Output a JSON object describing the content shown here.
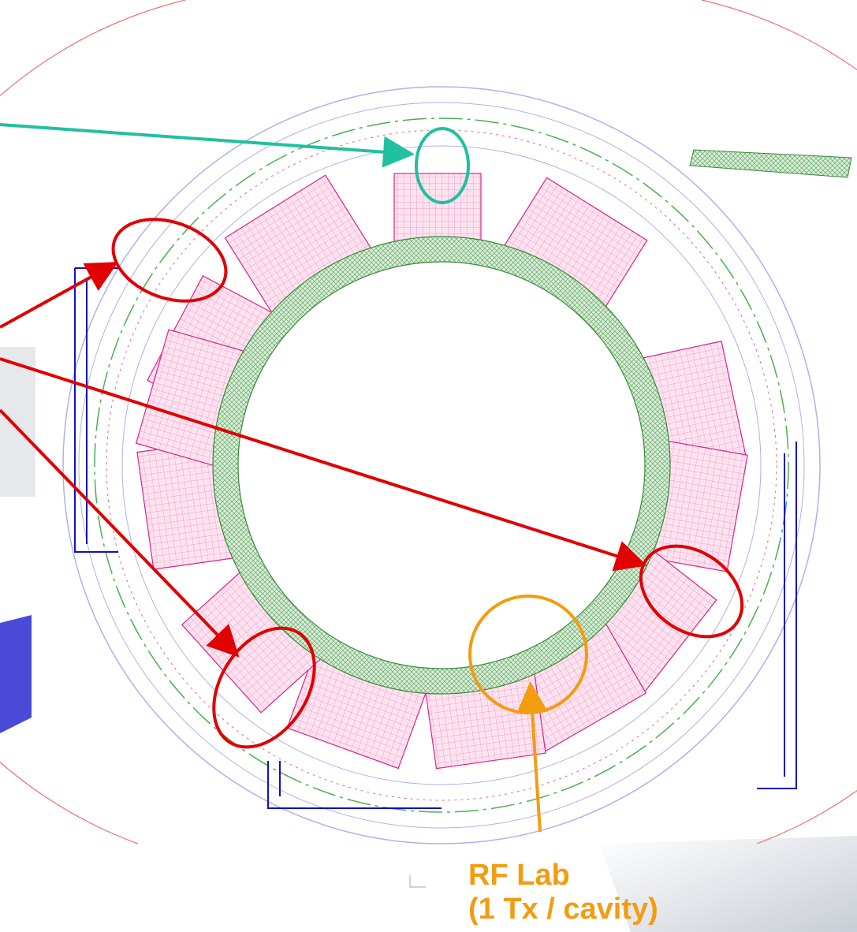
{
  "callout": {
    "lines": [
      "RF Lab",
      "(1 Tx / cavity)"
    ]
  }
}
